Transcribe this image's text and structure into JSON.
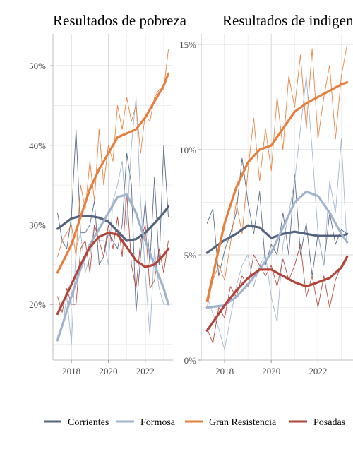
{
  "colors": {
    "Corrientes": "#546480",
    "Formosa": "#9fb3cf",
    "Gran Resistencia": "#e67e3c",
    "Posadas": "#b2443a",
    "grid": "#d9d9d9",
    "axis_text": "#4d4d4d"
  },
  "legend": {
    "position": "bottom",
    "items": [
      "Corrientes",
      "Formosa",
      "Gran Resistencia",
      "Posadas"
    ]
  },
  "chart_data": [
    {
      "type": "line",
      "title": "Resultados de pobreza",
      "xlabel": "",
      "ylabel": "",
      "xlim": [
        2017.0,
        2023.5
      ],
      "ylim": [
        13,
        54
      ],
      "x_ticks": [
        2018,
        2020,
        2022
      ],
      "x_tick_labels": [
        "2018",
        "2020",
        "2022"
      ],
      "y_ticks": [
        20,
        30,
        40,
        50
      ],
      "y_tick_labels": [
        "20%",
        "30%",
        "40%",
        "50%"
      ],
      "grid": true,
      "series": [
        {
          "name": "Corrientes",
          "kind": "raw",
          "x": [
            2017.25,
            2017.5,
            2017.75,
            2018.0,
            2018.25,
            2018.5,
            2018.75,
            2019.0,
            2019.25,
            2019.5,
            2019.75,
            2020.0,
            2020.25,
            2020.5,
            2020.75,
            2021.0,
            2021.25,
            2021.5,
            2021.75,
            2022.0,
            2022.25,
            2022.5,
            2022.75,
            2023.0,
            2023.25
          ],
          "y": [
            31.5,
            28,
            27,
            31,
            42,
            29,
            29,
            30,
            33,
            25,
            26,
            29,
            28,
            27,
            30,
            39,
            35,
            19,
            26,
            33,
            25,
            36,
            25,
            40,
            31
          ]
        },
        {
          "name": "Formosa",
          "kind": "raw",
          "x": [
            2017.25,
            2017.5,
            2017.75,
            2018.0,
            2018.25,
            2018.5,
            2018.75,
            2019.0,
            2019.25,
            2019.5,
            2019.75,
            2020.0,
            2020.25,
            2020.5,
            2020.75,
            2021.0,
            2021.25,
            2021.5,
            2021.75,
            2022.0,
            2022.25,
            2022.5,
            2022.75,
            2023.0,
            2023.25
          ],
          "y": [
            16,
            17,
            21,
            15,
            27,
            29,
            24,
            26,
            30,
            28,
            28,
            25,
            33,
            35,
            38,
            30,
            40,
            46,
            33,
            24,
            16,
            27,
            22,
            20,
            20
          ]
        },
        {
          "name": "Gran Resistencia",
          "kind": "raw",
          "x": [
            2017.25,
            2017.5,
            2017.75,
            2018.0,
            2018.25,
            2018.5,
            2018.75,
            2019.0,
            2019.25,
            2019.5,
            2019.75,
            2020.0,
            2020.25,
            2020.5,
            2020.75,
            2021.0,
            2021.25,
            2021.5,
            2021.75,
            2022.0,
            2022.25,
            2022.5,
            2022.75,
            2023.0,
            2023.25
          ],
          "y": [
            26,
            28,
            29,
            30,
            26,
            35,
            32,
            38,
            33,
            42,
            35,
            40,
            38,
            45,
            42,
            46,
            43,
            45,
            39,
            44,
            43,
            46,
            47,
            47,
            52
          ]
        },
        {
          "name": "Posadas",
          "kind": "raw",
          "x": [
            2017.25,
            2017.5,
            2017.75,
            2018.0,
            2018.25,
            2018.5,
            2018.75,
            2019.0,
            2019.25,
            2019.5,
            2019.75,
            2020.0,
            2020.25,
            2020.5,
            2020.75,
            2021.0,
            2021.25,
            2021.5,
            2021.75,
            2022.0,
            2022.25,
            2022.5,
            2022.75,
            2023.0,
            2023.25
          ],
          "y": [
            21,
            19,
            22,
            20,
            20,
            27,
            28,
            24,
            30,
            28,
            26,
            30,
            27,
            31,
            26,
            34,
            25,
            22,
            28,
            30,
            22,
            23,
            27,
            24,
            28
          ]
        },
        {
          "name": "Corrientes",
          "kind": "smooth",
          "x": [
            2017.25,
            2018.0,
            2018.5,
            2019.0,
            2019.5,
            2020.0,
            2020.5,
            2021.0,
            2021.5,
            2022.0,
            2022.5,
            2023.0,
            2023.25
          ],
          "y": [
            29.5,
            30.8,
            31.1,
            31.1,
            30.9,
            30.4,
            29.2,
            28.0,
            28.2,
            29.0,
            30.2,
            31.5,
            32.3
          ]
        },
        {
          "name": "Formosa",
          "kind": "smooth",
          "x": [
            2017.25,
            2018.0,
            2018.5,
            2019.0,
            2019.5,
            2020.0,
            2020.5,
            2021.0,
            2021.5,
            2022.0,
            2022.5,
            2023.0,
            2023.25
          ],
          "y": [
            15.5,
            21.0,
            24.5,
            27.5,
            29.5,
            31.5,
            33.5,
            33.8,
            31.5,
            28.0,
            25.0,
            22.0,
            20.0
          ]
        },
        {
          "name": "Gran Resistencia",
          "kind": "smooth",
          "x": [
            2017.25,
            2018.0,
            2018.5,
            2019.0,
            2019.5,
            2020.0,
            2020.5,
            2021.0,
            2021.5,
            2022.0,
            2022.5,
            2023.0,
            2023.25
          ],
          "y": [
            24.0,
            27.5,
            31.0,
            34.5,
            37.0,
            39.0,
            41.0,
            41.5,
            42.0,
            43.5,
            45.5,
            47.5,
            49.0
          ]
        },
        {
          "name": "Posadas",
          "kind": "smooth",
          "x": [
            2017.25,
            2018.0,
            2018.5,
            2019.0,
            2019.5,
            2020.0,
            2020.5,
            2021.0,
            2021.5,
            2022.0,
            2022.5,
            2023.0,
            2023.25
          ],
          "y": [
            18.8,
            22.5,
            25.0,
            27.2,
            28.5,
            29.0,
            28.8,
            27.2,
            25.5,
            24.7,
            25.0,
            26.2,
            27.0
          ]
        }
      ]
    },
    {
      "type": "line",
      "title": "Resultados de indigencia",
      "xlabel": "",
      "ylabel": "",
      "xlim": [
        2017.0,
        2023.5
      ],
      "ylim": [
        0,
        15.5
      ],
      "x_ticks": [
        2018,
        2020,
        2022
      ],
      "x_tick_labels": [
        "2018",
        "2020",
        "2022"
      ],
      "y_ticks": [
        0,
        5,
        10,
        15
      ],
      "y_tick_labels": [
        "0%",
        "5%",
        "10%",
        "15%"
      ],
      "grid": true,
      "series": [
        {
          "name": "Corrientes",
          "kind": "raw",
          "x": [
            2017.25,
            2017.5,
            2017.75,
            2018.0,
            2018.25,
            2018.5,
            2018.75,
            2019.0,
            2019.25,
            2019.5,
            2019.75,
            2020.0,
            2020.25,
            2020.5,
            2020.75,
            2021.0,
            2021.25,
            2021.5,
            2021.75,
            2022.0,
            2022.25,
            2022.5,
            2022.75,
            2023.0,
            2023.25
          ],
          "y": [
            6.5,
            7.2,
            4.0,
            5.2,
            6.0,
            7.0,
            9.6,
            7.5,
            6.0,
            8.0,
            4.5,
            5.5,
            5.0,
            7.0,
            5.0,
            8.8,
            5.0,
            6.5,
            4.0,
            6.0,
            4.5,
            7.0,
            5.5,
            6.2,
            6.0
          ]
        },
        {
          "name": "Formosa",
          "kind": "raw",
          "x": [
            2017.25,
            2017.5,
            2017.75,
            2018.0,
            2018.25,
            2018.5,
            2018.75,
            2019.0,
            2019.25,
            2019.5,
            2019.75,
            2020.0,
            2020.25,
            2020.5,
            2020.75,
            2021.0,
            2021.25,
            2021.5,
            2021.75,
            2022.0,
            2022.25,
            2022.5,
            2022.75,
            2023.0,
            2023.25
          ],
          "y": [
            3.0,
            2.2,
            1.5,
            0.5,
            2.0,
            3.5,
            4.5,
            5.0,
            3.5,
            4.5,
            5.0,
            3.0,
            1.8,
            5.5,
            7.0,
            8.5,
            11.0,
            13.5,
            10.0,
            6.0,
            4.5,
            8.5,
            7.0,
            10.5,
            5.2
          ]
        },
        {
          "name": "Gran Resistencia",
          "kind": "raw",
          "x": [
            2017.25,
            2017.5,
            2017.75,
            2018.0,
            2018.25,
            2018.5,
            2018.75,
            2019.0,
            2019.25,
            2019.5,
            2019.75,
            2020.0,
            2020.25,
            2020.5,
            2020.75,
            2021.0,
            2021.25,
            2021.5,
            2021.75,
            2022.0,
            2022.25,
            2022.5,
            2022.75,
            2023.0,
            2023.25
          ],
          "y": [
            2.5,
            3.8,
            4.5,
            3.8,
            5.5,
            7.5,
            6.0,
            9.0,
            11.5,
            8.5,
            11.0,
            9.0,
            12.5,
            10.0,
            13.5,
            12.0,
            14.5,
            11.0,
            14.8,
            10.5,
            12.5,
            14.0,
            10.5,
            13.5,
            15.0
          ]
        },
        {
          "name": "Posadas",
          "kind": "raw",
          "x": [
            2017.25,
            2017.5,
            2017.75,
            2018.0,
            2018.25,
            2018.5,
            2018.75,
            2019.0,
            2019.25,
            2019.5,
            2019.75,
            2020.0,
            2020.25,
            2020.5,
            2020.75,
            2021.0,
            2021.25,
            2021.5,
            2021.75,
            2022.0,
            2022.25,
            2022.5,
            2022.75,
            2023.0,
            2023.25
          ],
          "y": [
            1.5,
            0.8,
            2.5,
            2.0,
            3.5,
            3.0,
            4.0,
            3.5,
            5.0,
            4.5,
            4.0,
            4.5,
            3.5,
            4.8,
            3.8,
            4.5,
            5.5,
            3.0,
            4.0,
            2.5,
            4.0,
            2.5,
            3.8,
            4.5,
            5.0
          ]
        },
        {
          "name": "Corrientes",
          "kind": "smooth",
          "x": [
            2017.25,
            2018.0,
            2018.5,
            2019.0,
            2019.5,
            2020.0,
            2020.5,
            2021.0,
            2021.5,
            2022.0,
            2022.5,
            2023.0,
            2023.25
          ],
          "y": [
            5.1,
            5.7,
            6.0,
            6.4,
            6.3,
            5.8,
            6.0,
            6.1,
            6.0,
            5.9,
            5.9,
            5.9,
            6.0
          ]
        },
        {
          "name": "Formosa",
          "kind": "smooth",
          "x": [
            2017.25,
            2018.0,
            2018.5,
            2019.0,
            2019.5,
            2020.0,
            2020.5,
            2021.0,
            2021.5,
            2022.0,
            2022.5,
            2023.0,
            2023.25
          ],
          "y": [
            2.5,
            2.6,
            3.0,
            3.6,
            4.3,
            5.1,
            6.3,
            7.5,
            8.0,
            7.8,
            7.0,
            6.0,
            5.6
          ]
        },
        {
          "name": "Gran Resistencia",
          "kind": "smooth",
          "x": [
            2017.25,
            2018.0,
            2018.5,
            2019.0,
            2019.5,
            2020.0,
            2020.5,
            2021.0,
            2021.5,
            2022.0,
            2022.5,
            2023.0,
            2023.25
          ],
          "y": [
            2.8,
            6.5,
            8.2,
            9.4,
            10.0,
            10.2,
            11.0,
            11.8,
            12.2,
            12.5,
            12.8,
            13.1,
            13.2
          ]
        },
        {
          "name": "Posadas",
          "kind": "smooth",
          "x": [
            2017.25,
            2018.0,
            2018.5,
            2019.0,
            2019.5,
            2020.0,
            2020.5,
            2021.0,
            2021.5,
            2022.0,
            2022.5,
            2023.0,
            2023.25
          ],
          "y": [
            1.4,
            2.6,
            3.3,
            3.9,
            4.3,
            4.3,
            4.0,
            3.7,
            3.5,
            3.7,
            3.9,
            4.4,
            4.9
          ]
        }
      ]
    }
  ]
}
